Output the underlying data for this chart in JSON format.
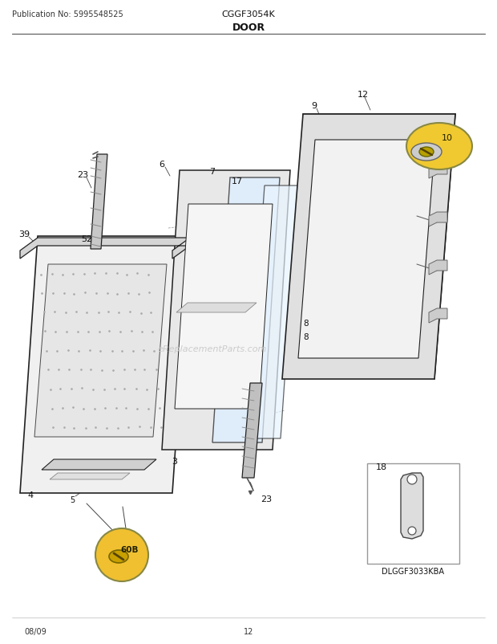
{
  "title_left": "Publication No: 5995548525",
  "title_center": "CGGF3054K",
  "title_section": "DOOR",
  "footer_left": "08/09",
  "footer_center": "12",
  "bg_color": "#ffffff",
  "line_color": "#222222",
  "watermark": "eReplacementParts.com"
}
